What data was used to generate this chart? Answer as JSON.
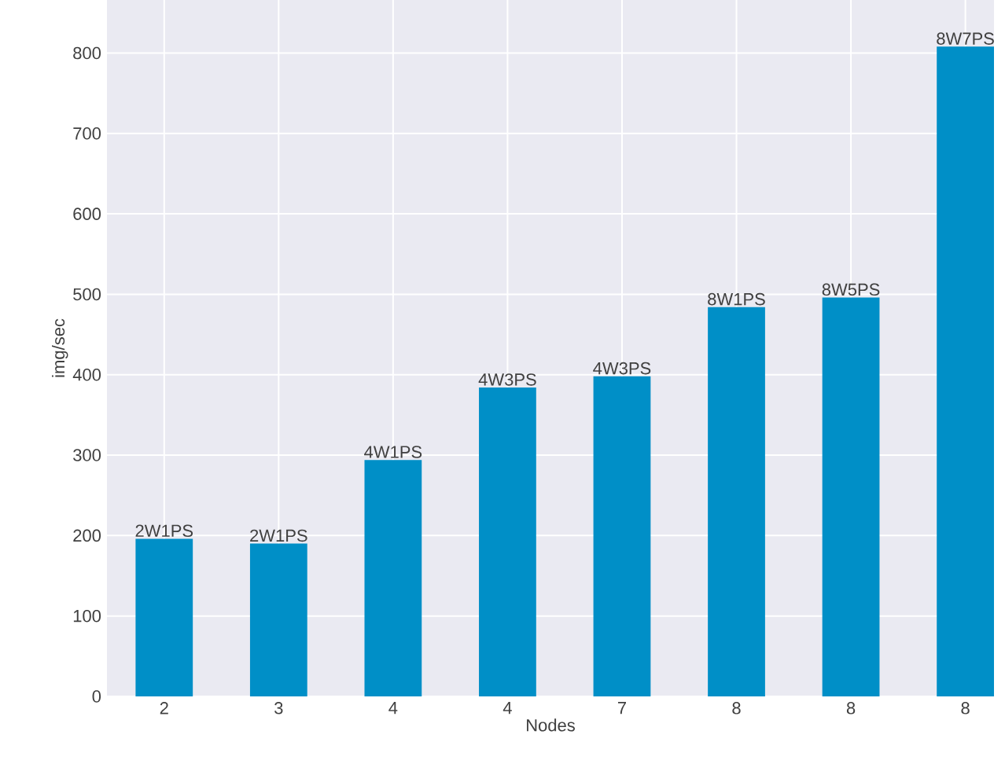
{
  "chart_data": {
    "type": "bar",
    "xlabel": "Nodes",
    "ylabel": "img/sec",
    "categories": [
      "2",
      "3",
      "4",
      "4",
      "7",
      "8",
      "8",
      "8"
    ],
    "values": [
      196,
      190,
      294,
      384,
      398,
      484,
      496,
      808
    ],
    "annotations": [
      "2W1PS",
      "2W1PS",
      "4W1PS",
      "4W3PS",
      "4W3PS",
      "8W1PS",
      "8W5PS",
      "8W7PS"
    ],
    "color": "#008fc7",
    "ylim": [
      0,
      866
    ],
    "yticks": [
      0,
      100,
      200,
      300,
      400,
      500,
      600,
      700,
      800
    ],
    "grid": true
  }
}
